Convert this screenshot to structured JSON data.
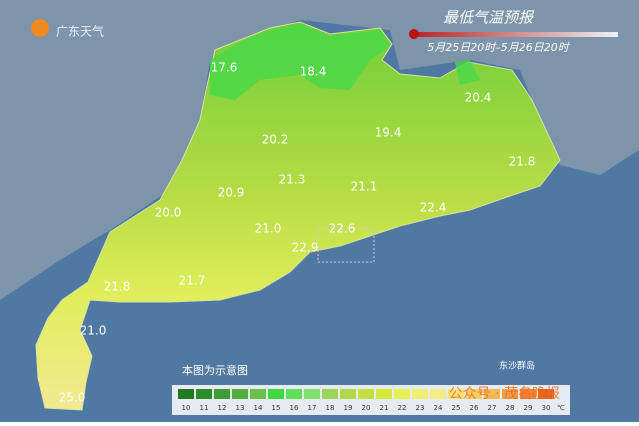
{
  "header": {
    "logo": "广东天气",
    "title": "最低气温预报",
    "period": "5月25日20时–5月26日20时"
  },
  "labels": [
    "17.6",
    "18.4",
    "20.4",
    "20.2",
    "19.4",
    "21.8",
    "20.9",
    "21.3",
    "21.1",
    "20.0",
    "21.0",
    "22.4",
    "22.9",
    "22.6",
    "21.7",
    "21.8",
    "21.0",
    "25.0"
  ],
  "island": "东沙群岛",
  "note": "本图为示意图",
  "legend": {
    "items": [
      {
        "label": "10",
        "color": "#1f7a1f"
      },
      {
        "label": "11",
        "color": "#2e8b2a"
      },
      {
        "label": "12",
        "color": "#3f9c35"
      },
      {
        "label": "13",
        "color": "#52ad40"
      },
      {
        "label": "14",
        "color": "#6bbf4c"
      },
      {
        "label": "15",
        "color": "#3fd83f"
      },
      {
        "label": "16",
        "color": "#5ee05a"
      },
      {
        "label": "17",
        "color": "#7fe070"
      },
      {
        "label": "18",
        "color": "#9ad45a"
      },
      {
        "label": "19",
        "color": "#b0d84a"
      },
      {
        "label": "20",
        "color": "#c4e040"
      },
      {
        "label": "21",
        "color": "#d6ea3c"
      },
      {
        "label": "22",
        "color": "#e6f050"
      },
      {
        "label": "23",
        "color": "#f0f070"
      },
      {
        "label": "24",
        "color": "#f5ec88"
      },
      {
        "label": "25",
        "color": "#f7e27a"
      },
      {
        "label": "26",
        "color": "#f5d060"
      },
      {
        "label": "27",
        "color": "#f5b850"
      },
      {
        "label": "28",
        "color": "#f59c40"
      },
      {
        "label": "29",
        "color": "#f08030"
      },
      {
        "label": "30",
        "color": "#e86020"
      }
    ],
    "unit": "℃"
  },
  "watermark": "公众号 · 茂名晚报"
}
